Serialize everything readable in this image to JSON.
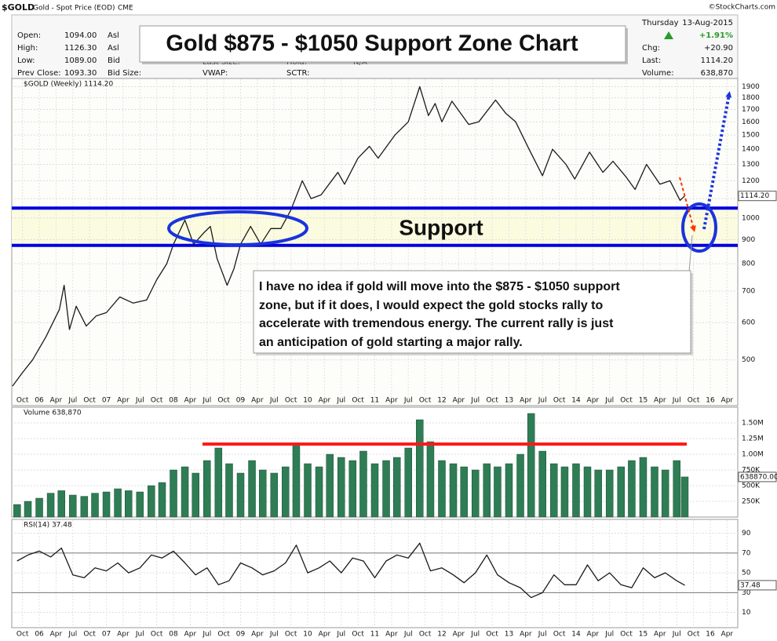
{
  "header": {
    "symbol": "$GOLD",
    "description": "Gold - Spot Price (EOD)",
    "exchange": "CME",
    "credit": "©StockCharts.com",
    "weekday": "Thursday",
    "date": "13-Aug-2015",
    "pct_change": "+1.91%",
    "rows": [
      [
        "Open:",
        "1094.00"
      ],
      [
        "High:",
        "1126.30"
      ],
      [
        "Low:",
        "1089.00"
      ],
      [
        "Prev Close:",
        "1093.30"
      ]
    ],
    "col2": [
      "Asl",
      "Asl",
      "Bid",
      "Bid Size:"
    ],
    "col3": [
      "Last Size:",
      "VWAP:"
    ],
    "col4": [
      "Hold:",
      "SCTR:"
    ],
    "hold_value": "N/A",
    "right_rows": [
      [
        "Chg:",
        "+20.90"
      ],
      [
        "Last:",
        "1114.20"
      ],
      [
        "Volume:",
        "638,870"
      ]
    ]
  },
  "chart_data": [
    {
      "type": "line",
      "log_scale": true,
      "grid": true,
      "color": "#1a1a1a",
      "title": "Gold $875 - $1050 Support Zone Chart",
      "label": "$GOLD (Weekly) 1114.20",
      "last_label": "1114.20",
      "support_label": "Support",
      "note": [
        "I have no idea if gold will move into the $875 - $1050 support",
        "zone, but if it does, I would expect the gold stocks rally to",
        "accelerate with tremendous energy.  The current rally is just",
        "an anticipation of gold starting a major rally."
      ],
      "support_zone": [
        875,
        1050
      ],
      "support_color": "#0000dd",
      "x": [
        2005.6,
        2005.75,
        2005.9,
        2006.1,
        2006.3,
        2006.37,
        2006.45,
        2006.55,
        2006.7,
        2006.85,
        2007.0,
        2007.2,
        2007.4,
        2007.6,
        2007.75,
        2007.9,
        2008.0,
        2008.17,
        2008.3,
        2008.45,
        2008.55,
        2008.65,
        2008.8,
        2008.9,
        2009.0,
        2009.15,
        2009.3,
        2009.45,
        2009.6,
        2009.75,
        2009.92,
        2010.05,
        2010.2,
        2010.45,
        2010.55,
        2010.75,
        2010.92,
        2011.05,
        2011.3,
        2011.5,
        2011.67,
        2011.8,
        2011.9,
        2012.0,
        2012.15,
        2012.4,
        2012.55,
        2012.8,
        2012.95,
        2013.1,
        2013.3,
        2013.5,
        2013.65,
        2013.85,
        2013.98,
        2014.2,
        2014.4,
        2014.55,
        2014.75,
        2014.88,
        2015.05,
        2015.25,
        2015.4,
        2015.55,
        2015.62
      ],
      "values": [
        440,
        470,
        500,
        560,
        640,
        720,
        580,
        650,
        590,
        620,
        630,
        680,
        660,
        670,
        740,
        800,
        880,
        990,
        880,
        930,
        960,
        820,
        720,
        780,
        880,
        960,
        880,
        950,
        950,
        1040,
        1200,
        1100,
        1120,
        1250,
        1180,
        1340,
        1420,
        1340,
        1500,
        1600,
        1900,
        1650,
        1750,
        1600,
        1770,
        1580,
        1600,
        1780,
        1670,
        1600,
        1400,
        1230,
        1400,
        1300,
        1210,
        1380,
        1250,
        1320,
        1220,
        1150,
        1300,
        1180,
        1200,
        1090,
        1114.2
      ],
      "xlim": [
        2005.59,
        2016.41
      ],
      "ylim": [
        403,
        1978
      ],
      "yticks": [
        500,
        600,
        700,
        800,
        900,
        1000,
        1100,
        1200,
        1300,
        1400,
        1500,
        1600,
        1700,
        1800,
        1900
      ],
      "xticks": [
        {
          "value": 2005.75,
          "label": "Oct"
        },
        {
          "value": 2006,
          "label": "06"
        },
        {
          "value": 2006.25,
          "label": "Apr"
        },
        {
          "value": 2006.5,
          "label": "Jul"
        },
        {
          "value": 2006.75,
          "label": "Oct"
        },
        {
          "value": 2007,
          "label": "07"
        },
        {
          "value": 2007.25,
          "label": "Apr"
        },
        {
          "value": 2007.5,
          "label": "Jul"
        },
        {
          "value": 2007.75,
          "label": "Oct"
        },
        {
          "value": 2008,
          "label": "08"
        },
        {
          "value": 2008.25,
          "label": "Apr"
        },
        {
          "value": 2008.5,
          "label": "Jul"
        },
        {
          "value": 2008.75,
          "label": "Oct"
        },
        {
          "value": 2009,
          "label": "09"
        },
        {
          "value": 2009.25,
          "label": "Apr"
        },
        {
          "value": 2009.5,
          "label": "Jul"
        },
        {
          "value": 2009.75,
          "label": "Oct"
        },
        {
          "value": 2010,
          "label": "10"
        },
        {
          "value": 2010.25,
          "label": "Apr"
        },
        {
          "value": 2010.5,
          "label": "Jul"
        },
        {
          "value": 2010.75,
          "label": "Oct"
        },
        {
          "value": 2011,
          "label": "11"
        },
        {
          "value": 2011.25,
          "label": "Apr"
        },
        {
          "value": 2011.5,
          "label": "Jul"
        },
        {
          "value": 2011.75,
          "label": "Oct"
        },
        {
          "value": 2012,
          "label": "12"
        },
        {
          "value": 2012.25,
          "label": "Apr"
        },
        {
          "value": 2012.5,
          "label": "Jul"
        },
        {
          "value": 2012.75,
          "label": "Oct"
        },
        {
          "value": 2013,
          "label": "13"
        },
        {
          "value": 2013.25,
          "label": "Apr"
        },
        {
          "value": 2013.5,
          "label": "Jul"
        },
        {
          "value": 2013.75,
          "label": "Oct"
        },
        {
          "value": 2014,
          "label": "14"
        },
        {
          "value": 2014.25,
          "label": "Apr"
        },
        {
          "value": 2014.5,
          "label": "Jul"
        },
        {
          "value": 2014.75,
          "label": "Oct"
        },
        {
          "value": 2015,
          "label": "15"
        },
        {
          "value": 2015.25,
          "label": "Apr"
        },
        {
          "value": 2015.5,
          "label": "Jul"
        },
        {
          "value": 2015.75,
          "label": "Oct"
        },
        {
          "value": 2016,
          "label": "16"
        },
        {
          "value": 2016.25,
          "label": "Apr"
        }
      ]
    },
    {
      "type": "bar",
      "grid": true,
      "color": "#2e7d55",
      "label": "Volume 638,870",
      "last_label": "638870.00",
      "x": [
        2005.67,
        2005.83,
        2006.0,
        2006.17,
        2006.33,
        2006.5,
        2006.67,
        2006.83,
        2007.0,
        2007.17,
        2007.33,
        2007.5,
        2007.67,
        2007.83,
        2008.0,
        2008.17,
        2008.33,
        2008.5,
        2008.67,
        2008.83,
        2009.0,
        2009.17,
        2009.33,
        2009.5,
        2009.67,
        2009.83,
        2010.0,
        2010.17,
        2010.33,
        2010.5,
        2010.67,
        2010.83,
        2011.0,
        2011.17,
        2011.33,
        2011.5,
        2011.67,
        2011.83,
        2012.0,
        2012.17,
        2012.33,
        2012.5,
        2012.67,
        2012.83,
        2013.0,
        2013.17,
        2013.33,
        2013.5,
        2013.67,
        2013.83,
        2014.0,
        2014.17,
        2014.33,
        2014.5,
        2014.67,
        2014.83,
        2015.0,
        2015.17,
        2015.33,
        2015.5,
        2015.62
      ],
      "values": [
        200000,
        250000,
        300000,
        380000,
        420000,
        350000,
        330000,
        380000,
        400000,
        450000,
        420000,
        400000,
        500000,
        550000,
        750000,
        800000,
        700000,
        900000,
        1100000,
        850000,
        700000,
        900000,
        750000,
        700000,
        800000,
        1150000,
        850000,
        800000,
        1000000,
        950000,
        900000,
        1050000,
        850000,
        900000,
        950000,
        1100000,
        1550000,
        1200000,
        900000,
        850000,
        800000,
        750000,
        850000,
        800000,
        850000,
        1000000,
        1650000,
        1050000,
        850000,
        800000,
        850000,
        800000,
        750000,
        750000,
        800000,
        900000,
        950000,
        800000,
        750000,
        900000,
        638870
      ],
      "xlim": [
        2005.59,
        2016.41
      ],
      "ylim": [
        0,
        1750000
      ],
      "yticks": [
        {
          "value": 250000,
          "label": "250K"
        },
        {
          "value": 500000,
          "label": "500K"
        },
        {
          "value": 750000,
          "label": "750K"
        },
        {
          "value": 1000000,
          "label": "1.00M"
        },
        {
          "value": 1250000,
          "label": "1.25M"
        },
        {
          "value": 1500000,
          "label": "1.50M"
        }
      ]
    },
    {
      "type": "line",
      "grid": true,
      "color": "#1a1a1a",
      "label": "RSI(14) 37.48",
      "last_label": "37.48",
      "levels": [
        30,
        70
      ],
      "x": [
        2005.67,
        2005.83,
        2006.0,
        2006.17,
        2006.33,
        2006.5,
        2006.67,
        2006.83,
        2007.0,
        2007.17,
        2007.33,
        2007.5,
        2007.67,
        2007.83,
        2008.0,
        2008.17,
        2008.33,
        2008.5,
        2008.67,
        2008.83,
        2009.0,
        2009.17,
        2009.33,
        2009.5,
        2009.67,
        2009.83,
        2010.0,
        2010.17,
        2010.33,
        2010.5,
        2010.67,
        2010.83,
        2011.0,
        2011.17,
        2011.33,
        2011.5,
        2011.67,
        2011.83,
        2012.0,
        2012.17,
        2012.33,
        2012.5,
        2012.67,
        2012.83,
        2013.0,
        2013.17,
        2013.33,
        2013.5,
        2013.67,
        2013.83,
        2014.0,
        2014.17,
        2014.33,
        2014.5,
        2014.67,
        2014.83,
        2015.0,
        2015.17,
        2015.33,
        2015.5,
        2015.62
      ],
      "values": [
        62,
        68,
        72,
        66,
        75,
        48,
        45,
        55,
        52,
        60,
        50,
        55,
        68,
        65,
        72,
        60,
        48,
        55,
        38,
        42,
        60,
        55,
        48,
        52,
        60,
        78,
        50,
        55,
        62,
        50,
        65,
        62,
        45,
        62,
        68,
        65,
        80,
        52,
        55,
        48,
        40,
        50,
        68,
        48,
        40,
        35,
        25,
        30,
        48,
        38,
        38,
        58,
        42,
        50,
        38,
        35,
        55,
        45,
        50,
        42,
        37.48
      ],
      "xlim": [
        2005.59,
        2016.41
      ],
      "ylim": [
        -3,
        104
      ],
      "yticks": [
        10,
        30,
        50,
        70,
        90
      ],
      "xticks": [
        {
          "value": 2005.75,
          "label": "Oct"
        },
        {
          "value": 2006,
          "label": "06"
        },
        {
          "value": 2006.25,
          "label": "Apr"
        },
        {
          "value": 2006.5,
          "label": "Jul"
        },
        {
          "value": 2006.75,
          "label": "Oct"
        },
        {
          "value": 2007,
          "label": "07"
        },
        {
          "value": 2007.25,
          "label": "Apr"
        },
        {
          "value": 2007.5,
          "label": "Jul"
        },
        {
          "value": 2007.75,
          "label": "Oct"
        },
        {
          "value": 2008,
          "label": "08"
        },
        {
          "value": 2008.25,
          "label": "Apr"
        },
        {
          "value": 2008.5,
          "label": "Jul"
        },
        {
          "value": 2008.75,
          "label": "Oct"
        },
        {
          "value": 2009,
          "label": "09"
        },
        {
          "value": 2009.25,
          "label": "Apr"
        },
        {
          "value": 2009.5,
          "label": "Jul"
        },
        {
          "value": 2009.75,
          "label": "Oct"
        },
        {
          "value": 2010,
          "label": "10"
        },
        {
          "value": 2010.25,
          "label": "Apr"
        },
        {
          "value": 2010.5,
          "label": "Jul"
        },
        {
          "value": 2010.75,
          "label": "Oct"
        },
        {
          "value": 2011,
          "label": "11"
        },
        {
          "value": 2011.25,
          "label": "Apr"
        },
        {
          "value": 2011.5,
          "label": "Jul"
        },
        {
          "value": 2011.75,
          "label": "Oct"
        },
        {
          "value": 2012,
          "label": "12"
        },
        {
          "value": 2012.25,
          "label": "Apr"
        },
        {
          "value": 2012.5,
          "label": "Jul"
        },
        {
          "value": 2012.75,
          "label": "Oct"
        },
        {
          "value": 2013,
          "label": "13"
        },
        {
          "value": 2013.25,
          "label": "Apr"
        },
        {
          "value": 2013.5,
          "label": "Jul"
        },
        {
          "value": 2013.75,
          "label": "Oct"
        },
        {
          "value": 2014,
          "label": "14"
        },
        {
          "value": 2014.25,
          "label": "Apr"
        },
        {
          "value": 2014.5,
          "label": "Jul"
        },
        {
          "value": 2014.75,
          "label": "Oct"
        },
        {
          "value": 2015,
          "label": "15"
        },
        {
          "value": 2015.25,
          "label": "Apr"
        },
        {
          "value": 2015.5,
          "label": "Jul"
        },
        {
          "value": 2015.75,
          "label": "Oct"
        },
        {
          "value": 2016,
          "label": "16"
        },
        {
          "value": 2016.25,
          "label": "Apr"
        }
      ]
    }
  ]
}
